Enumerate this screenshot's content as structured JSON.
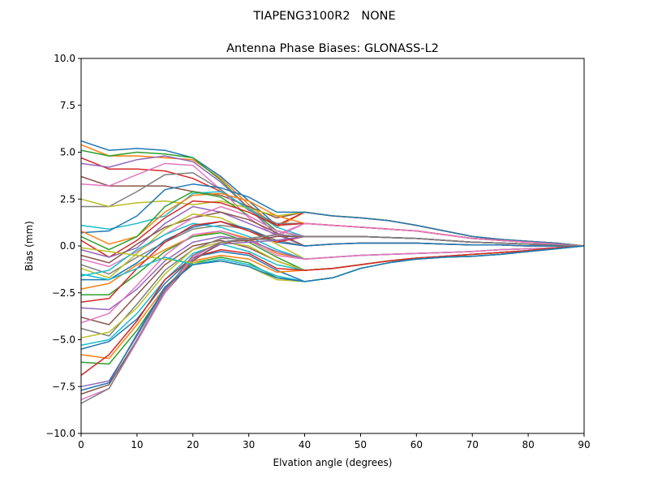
{
  "chart_data": {
    "type": "line",
    "suptitle": "TIAPENG3100R2   NONE",
    "title": "Antenna Phase Biases: GLONASS-L2",
    "xlabel": "Elvation angle (degrees)",
    "ylabel": "Bias (mm)",
    "xlim": [
      0,
      90
    ],
    "ylim": [
      -10,
      10
    ],
    "xticks": [
      0,
      10,
      20,
      30,
      40,
      50,
      60,
      70,
      80,
      90
    ],
    "xtick_labels": [
      "0",
      "10",
      "20",
      "30",
      "40",
      "50",
      "60",
      "70",
      "80",
      "90"
    ],
    "yticks": [
      -10,
      -7.5,
      -5,
      -2.5,
      0,
      2.5,
      5,
      7.5,
      10
    ],
    "ytick_labels": [
      "−10.0",
      "−7.5",
      "−5.0",
      "−2.5",
      "0.0",
      "2.5",
      "5.0",
      "7.5",
      "10.0"
    ],
    "grid": false,
    "colors": [
      "#1f77b4",
      "#ff7f0e",
      "#2ca02c",
      "#d62728",
      "#9467bd",
      "#8c564b",
      "#e377c2",
      "#7f7f7f",
      "#bcbd22",
      "#17becf"
    ],
    "x": [
      0,
      5,
      10,
      15,
      20,
      25,
      30,
      35,
      40,
      45,
      50,
      55,
      60,
      65,
      70,
      75,
      80,
      85,
      90
    ],
    "series": [
      {
        "values": [
          5.6,
          5.1,
          5.2,
          5.1,
          4.7,
          3.7,
          2.4,
          1.1,
          1.2,
          1.1,
          1.0,
          0.9,
          0.8,
          0.6,
          0.4,
          0.3,
          0.2,
          0.1,
          0
        ]
      },
      {
        "values": [
          5.4,
          4.8,
          4.8,
          4.7,
          4.6,
          3.6,
          2.2,
          1.0,
          1.8,
          1.6,
          1.5,
          1.35,
          1.1,
          0.8,
          0.5,
          0.35,
          0.25,
          0.15,
          0
        ]
      },
      {
        "values": [
          5.1,
          4.8,
          5.0,
          4.9,
          4.7,
          3.5,
          2.0,
          0.8,
          0.5,
          0.5,
          0.5,
          0.45,
          0.4,
          0.3,
          0.2,
          0.15,
          0.1,
          0.05,
          0
        ]
      },
      {
        "values": [
          4.7,
          4.1,
          4.1,
          4.0,
          3.6,
          2.9,
          2.0,
          1.1,
          1.8,
          1.6,
          1.5,
          1.35,
          1.1,
          0.8,
          0.5,
          0.35,
          0.25,
          0.15,
          0
        ]
      },
      {
        "values": [
          4.4,
          4.2,
          4.6,
          4.8,
          4.5,
          3.4,
          2.0,
          0.6,
          0,
          0.1,
          0.15,
          0.15,
          0.15,
          0.1,
          0.05,
          0.05,
          0,
          0,
          0
        ]
      },
      {
        "values": [
          3.7,
          3.2,
          3.2,
          3.2,
          2.9,
          2.7,
          2.1,
          1.5,
          1.8,
          1.6,
          1.5,
          1.35,
          1.1,
          0.8,
          0.5,
          0.35,
          0.25,
          0.15,
          0
        ]
      },
      {
        "values": [
          3.3,
          3.2,
          3.8,
          4.4,
          4.3,
          3.0,
          1.5,
          0.5,
          1.2,
          1.1,
          1.0,
          0.9,
          0.8,
          0.6,
          0.4,
          0.3,
          0.2,
          0.1,
          0
        ]
      },
      {
        "values": [
          2.1,
          2.1,
          2.9,
          3.8,
          3.9,
          3.0,
          1.9,
          1.2,
          1.2,
          1.1,
          1.0,
          0.9,
          0.8,
          0.6,
          0.4,
          0.3,
          0.2,
          0.1,
          0
        ]
      },
      {
        "values": [
          2.5,
          2.1,
          2.3,
          2.4,
          2.2,
          2.4,
          2.0,
          1.6,
          1.8,
          1.6,
          1.5,
          1.35,
          1.1,
          0.8,
          0.5,
          0.35,
          0.25,
          0.15,
          0
        ]
      },
      {
        "values": [
          1.1,
          0.9,
          1.2,
          1.6,
          2.8,
          2.9,
          2.0,
          1.0,
          0.5,
          0.5,
          0.5,
          0.45,
          0.4,
          0.3,
          0.2,
          0.15,
          0.1,
          0.05,
          0
        ]
      },
      {
        "values": [
          0.7,
          0.8,
          1.6,
          3.0,
          3.3,
          3.1,
          2.6,
          1.8,
          1.8,
          1.6,
          1.5,
          1.35,
          1.1,
          0.8,
          0.5,
          0.35,
          0.25,
          0.15,
          0
        ]
      },
      {
        "values": [
          0.8,
          0.1,
          0.5,
          1.8,
          2.7,
          2.8,
          2.4,
          1.6,
          1.2,
          1.1,
          1.0,
          0.9,
          0.8,
          0.6,
          0.4,
          0.3,
          0.2,
          0.1,
          0
        ]
      },
      {
        "values": [
          0.5,
          -0.2,
          0.5,
          2.1,
          2.9,
          2.6,
          1.6,
          0.8,
          0.5,
          0.5,
          0.5,
          0.45,
          0.4,
          0.3,
          0.2,
          0.15,
          0.1,
          0.05,
          0
        ]
      },
      {
        "values": [
          0.3,
          -0.6,
          0.3,
          1.5,
          2.4,
          2.3,
          1.8,
          1.1,
          1.2,
          1.1,
          1.0,
          0.9,
          0.8,
          0.6,
          0.4,
          0.3,
          0.2,
          0.1,
          0
        ]
      },
      {
        "values": [
          -0.2,
          -0.6,
          -0.1,
          1.2,
          2.1,
          1.8,
          1.2,
          0.6,
          0.5,
          0.5,
          0.5,
          0.45,
          0.4,
          0.3,
          0.2,
          0.15,
          0.1,
          0.05,
          0
        ]
      },
      {
        "values": [
          -0.5,
          -0.9,
          0.1,
          1.0,
          1.5,
          1.8,
          1.4,
          0.7,
          0,
          0.1,
          0.15,
          0.15,
          0.15,
          0.1,
          0.05,
          0.05,
          0,
          0,
          0
        ]
      },
      {
        "values": [
          -0.7,
          -1.1,
          -0.3,
          0.6,
          1.5,
          2.1,
          1.6,
          0.8,
          0.5,
          0.5,
          0.5,
          0.45,
          0.4,
          0.3,
          0.2,
          0.15,
          0.1,
          0.05,
          0
        ]
      },
      {
        "values": [
          -1.0,
          -1.5,
          -0.6,
          0.2,
          0.9,
          1.1,
          0.9,
          0.3,
          0,
          0.1,
          0.15,
          0.15,
          0.15,
          0.1,
          0.05,
          0.05,
          0,
          0,
          0
        ]
      },
      {
        "values": [
          -1.2,
          -1.7,
          -0.4,
          0.9,
          1.7,
          1.5,
          0.8,
          0.1,
          -0.7,
          -0.6,
          -0.5,
          -0.45,
          -0.4,
          -0.35,
          -0.3,
          -0.2,
          -0.15,
          -0.1,
          0
        ]
      },
      {
        "values": [
          -1.6,
          -1.3,
          -0.2,
          0.6,
          1.2,
          1.0,
          0.5,
          -0.2,
          -0.7,
          -0.6,
          -0.5,
          -0.45,
          -0.4,
          -0.35,
          -0.3,
          -0.2,
          -0.15,
          -0.1,
          0
        ]
      },
      {
        "values": [
          -1.8,
          -1.8,
          -0.9,
          0.3,
          1.0,
          1.3,
          0.9,
          0.2,
          0,
          0.1,
          0.15,
          0.15,
          0.15,
          0.1,
          0.05,
          0.05,
          0,
          0,
          0
        ]
      },
      {
        "values": [
          -2.3,
          -2.0,
          -1.0,
          -0.2,
          0.5,
          0.8,
          0.4,
          -0.4,
          -0.7,
          -0.6,
          -0.5,
          -0.45,
          -0.4,
          -0.35,
          -0.3,
          -0.2,
          -0.15,
          -0.1,
          0
        ]
      },
      {
        "values": [
          -2.6,
          -2.6,
          -1.5,
          -0.3,
          0.5,
          0.7,
          0.2,
          -0.6,
          -1.3,
          -1.2,
          -1.0,
          -0.8,
          -0.65,
          -0.55,
          -0.45,
          -0.35,
          -0.25,
          -0.1,
          0
        ]
      },
      {
        "values": [
          -3.0,
          -2.8,
          -1.2,
          0.2,
          1.1,
          1.3,
          0.8,
          0.2,
          0.5,
          0.5,
          0.5,
          0.45,
          0.4,
          0.3,
          0.2,
          0.15,
          0.1,
          0.05,
          0
        ]
      },
      {
        "values": [
          -3.3,
          -3.4,
          -2.3,
          -0.8,
          0.2,
          0.5,
          0.3,
          -0.3,
          -0.7,
          -0.6,
          -0.5,
          -0.45,
          -0.4,
          -0.35,
          -0.3,
          -0.2,
          -0.15,
          -0.1,
          0
        ]
      },
      {
        "values": [
          -3.8,
          -4.2,
          -2.6,
          -1.0,
          0.0,
          0.3,
          -0.1,
          -0.8,
          -1.3,
          -1.2,
          -1.0,
          -0.8,
          -0.65,
          -0.55,
          -0.45,
          -0.35,
          -0.25,
          -0.1,
          0
        ]
      },
      {
        "values": [
          -4.1,
          -3.6,
          -2.1,
          -0.5,
          0.6,
          0.8,
          0.3,
          -0.5,
          -0.7,
          -0.6,
          -0.5,
          -0.45,
          -0.4,
          -0.35,
          -0.3,
          -0.2,
          -0.15,
          -0.1,
          0
        ]
      },
      {
        "values": [
          -4.4,
          -4.8,
          -3.1,
          -1.3,
          -0.2,
          0.4,
          0.4,
          0.3,
          0.5,
          0.5,
          0.5,
          0.45,
          0.4,
          0.3,
          0.2,
          0.15,
          0.1,
          0.05,
          0
        ]
      },
      {
        "values": [
          -4.9,
          -4.6,
          -3.3,
          -1.5,
          -0.2,
          0.2,
          0.0,
          -0.8,
          -1.3,
          -1.2,
          -1.0,
          -0.8,
          -0.65,
          -0.55,
          -0.45,
          -0.35,
          -0.25,
          -0.1,
          0
        ]
      },
      {
        "values": [
          -5.3,
          -5.0,
          -3.6,
          -1.8,
          -0.4,
          0.1,
          -0.3,
          -1.0,
          -1.3,
          -1.2,
          -1.0,
          -0.8,
          -0.65,
          -0.55,
          -0.45,
          -0.35,
          -0.25,
          -0.1,
          0
        ]
      },
      {
        "values": [
          -5.5,
          -5.1,
          -3.9,
          -2.0,
          -0.6,
          -0.3,
          -0.5,
          -1.3,
          -1.9,
          -1.7,
          -1.2,
          -0.9,
          -0.7,
          -0.6,
          -0.55,
          -0.45,
          -0.3,
          -0.15,
          0
        ]
      },
      {
        "values": [
          -5.8,
          -6.0,
          -4.2,
          -2.2,
          -0.8,
          -0.5,
          -0.7,
          -1.4,
          -1.3,
          -1.2,
          -1.0,
          -0.8,
          -0.65,
          -0.55,
          -0.45,
          -0.35,
          -0.25,
          -0.1,
          0
        ]
      },
      {
        "values": [
          -6.2,
          -6.3,
          -4.5,
          -2.3,
          -0.9,
          -0.6,
          -0.9,
          -1.7,
          -1.9,
          -1.7,
          -1.2,
          -0.9,
          -0.7,
          -0.6,
          -0.55,
          -0.45,
          -0.3,
          -0.15,
          0
        ]
      },
      {
        "values": [
          -6.9,
          -5.8,
          -4.0,
          -1.8,
          -0.6,
          -0.2,
          -0.4,
          -1.2,
          -1.3,
          -1.2,
          -1.0,
          -0.8,
          -0.65,
          -0.55,
          -0.45,
          -0.35,
          -0.25,
          -0.1,
          0
        ]
      },
      {
        "values": [
          -7.5,
          -7.2,
          -4.8,
          -2.3,
          -0.7,
          0.1,
          0.2,
          0.3,
          0.5,
          0.5,
          0.5,
          0.45,
          0.4,
          0.3,
          0.2,
          0.15,
          0.1,
          0.05,
          0
        ]
      },
      {
        "values": [
          -7.9,
          -7.4,
          -5.0,
          -2.5,
          -0.8,
          0.2,
          0.3,
          0.5,
          0.5,
          0.5,
          0.5,
          0.45,
          0.4,
          0.3,
          0.2,
          0.15,
          0.1,
          0.05,
          0
        ]
      },
      {
        "values": [
          -8.2,
          -7.6,
          -5.1,
          -2.5,
          -0.6,
          0.2,
          0.4,
          0.6,
          1.2,
          1.1,
          1.0,
          0.9,
          0.8,
          0.6,
          0.4,
          0.3,
          0.2,
          0.1,
          0
        ]
      },
      {
        "values": [
          -8.4,
          -7.6,
          -5.0,
          -2.4,
          -0.5,
          0.2,
          0.4,
          0.6,
          0.5,
          0.5,
          0.5,
          0.45,
          0.4,
          0.3,
          0.2,
          0.15,
          0.1,
          0.05,
          0
        ]
      },
      {
        "values": [
          -0.1,
          -0.3,
          -0.5,
          -0.7,
          -0.9,
          -0.8,
          -1.1,
          -1.8,
          -1.9,
          -1.7,
          -1.2,
          -0.9,
          -0.7,
          -0.6,
          -0.55,
          -0.45,
          -0.3,
          -0.15,
          0
        ]
      },
      {
        "values": [
          -1.5,
          -1.8,
          -1.2,
          -0.6,
          -1.0,
          -0.7,
          -1.0,
          -1.6,
          -1.9,
          -1.7,
          -1.2,
          -0.9,
          -0.7,
          -0.6,
          -0.55,
          -0.45,
          -0.3,
          -0.15,
          0
        ]
      },
      {
        "values": [
          -7.7,
          -7.3,
          -4.7,
          -2.2,
          -1.0,
          -0.8,
          -1.1,
          -1.7,
          -1.9,
          -1.7,
          -1.2,
          -0.9,
          -0.7,
          -0.6,
          -0.55,
          -0.45,
          -0.3,
          -0.15,
          0
        ]
      }
    ]
  }
}
